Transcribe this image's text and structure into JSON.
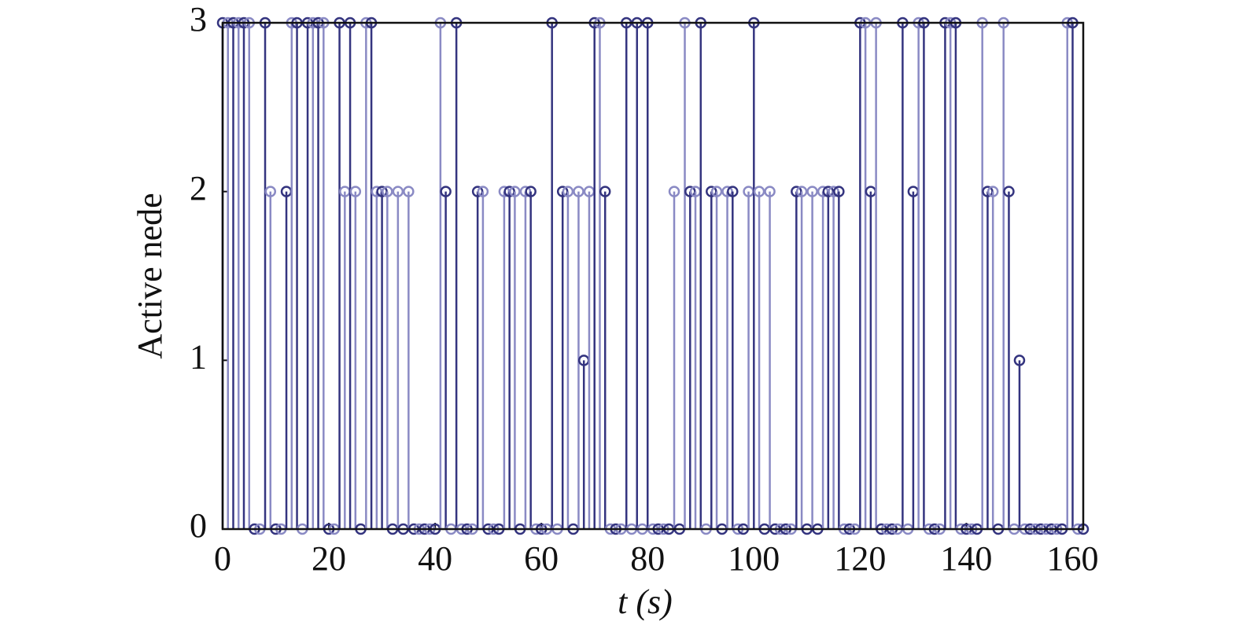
{
  "chart_data": {
    "type": "stem",
    "xlabel": "t (s)",
    "ylabel": "Active nede",
    "x": [
      0,
      1,
      2,
      3,
      4,
      5,
      6,
      7,
      8,
      9,
      10,
      11,
      12,
      13,
      14,
      15,
      16,
      17,
      18,
      19,
      20,
      21,
      22,
      23,
      24,
      25,
      26,
      27,
      28,
      29,
      30,
      31,
      32,
      33,
      34,
      35,
      36,
      37,
      38,
      39,
      40,
      41,
      42,
      43,
      44,
      45,
      46,
      47,
      48,
      49,
      50,
      51,
      52,
      53,
      54,
      55,
      56,
      57,
      58,
      59,
      60,
      61,
      62,
      63,
      64,
      65,
      66,
      67,
      68,
      69,
      70,
      71,
      72,
      73,
      74,
      75,
      76,
      77,
      78,
      79,
      80,
      81,
      82,
      83,
      84,
      85,
      86,
      87,
      88,
      89,
      90,
      91,
      92,
      93,
      94,
      95,
      96,
      97,
      98,
      99,
      100,
      101,
      102,
      103,
      104,
      105,
      106,
      107,
      108,
      109,
      110,
      111,
      112,
      113,
      114,
      115,
      116,
      117,
      118,
      119,
      120,
      121,
      122,
      123,
      124,
      125,
      126,
      127,
      128,
      129,
      130,
      131,
      132,
      133,
      134,
      135,
      136,
      137,
      138,
      139,
      140,
      141,
      142,
      143,
      144,
      145,
      146,
      147,
      148,
      149,
      150,
      151,
      152,
      153,
      154,
      155,
      156,
      157,
      158,
      159,
      160,
      161,
      162
    ],
    "series": [
      {
        "color": "#34347f",
        "values": [
          3,
          3,
          3,
          3,
          3,
          3,
          0,
          0,
          3,
          2,
          0,
          0,
          2,
          3,
          3,
          0,
          3,
          3,
          3,
          3,
          0,
          0,
          3,
          2,
          3,
          2,
          0,
          3,
          3,
          2,
          2,
          2,
          0,
          2,
          0,
          2,
          0,
          0,
          0,
          0,
          0,
          3,
          2,
          0,
          3,
          0,
          0,
          0,
          2,
          2,
          0,
          0,
          0,
          2,
          2,
          2,
          0,
          2,
          2,
          0,
          0,
          0,
          3,
          0,
          2,
          2,
          0,
          2,
          1,
          2,
          3,
          3,
          2,
          0,
          0,
          0,
          3,
          0,
          3,
          0,
          3,
          0,
          0,
          0,
          0,
          2,
          0,
          3,
          2,
          2,
          3,
          0,
          2,
          2,
          0,
          2,
          2,
          0,
          0,
          2,
          3,
          2,
          0,
          2,
          0,
          0,
          0,
          0,
          2,
          2,
          0,
          2,
          0,
          2,
          2,
          2,
          2,
          0,
          0,
          0,
          3,
          3,
          2,
          3,
          0,
          0,
          0,
          0,
          3,
          0,
          2,
          3,
          3,
          0,
          0,
          0,
          3,
          3,
          3,
          0,
          0,
          0,
          0,
          3,
          2,
          2,
          0,
          3,
          2,
          0,
          1,
          0,
          0,
          0,
          0,
          0,
          0,
          0,
          0,
          3,
          3,
          0,
          0
        ]
      }
    ],
    "xlim": [
      0,
      162
    ],
    "ylim": [
      0,
      3
    ],
    "xticks": [
      0,
      20,
      40,
      60,
      80,
      100,
      120,
      140,
      160
    ],
    "yticks": [
      0,
      1,
      2,
      3
    ]
  }
}
